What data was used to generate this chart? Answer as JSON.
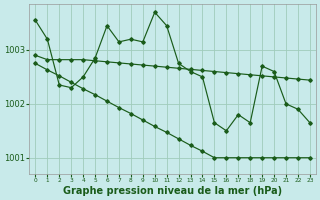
{
  "background_color": "#c8eaea",
  "grid_color": "#a0ccbb",
  "line_color": "#1a5c1a",
  "xlabel": "Graphe pression niveau de la mer (hPa)",
  "xlabel_fontsize": 7,
  "ylabel_ticks": [
    1001,
    1002,
    1003
  ],
  "xlim": [
    -0.5,
    23.5
  ],
  "ylim": [
    1000.7,
    1003.85
  ],
  "xticks": [
    0,
    1,
    2,
    3,
    4,
    5,
    6,
    7,
    8,
    9,
    10,
    11,
    12,
    13,
    14,
    15,
    16,
    17,
    18,
    19,
    20,
    21,
    22,
    23
  ],
  "series": [
    {
      "x": [
        0,
        1,
        2,
        3,
        4,
        5,
        6,
        7,
        8,
        9,
        10,
        11,
        12,
        13,
        14,
        15,
        16,
        17,
        18,
        19,
        20,
        21,
        22,
        23
      ],
      "y": [
        1003.55,
        1003.2,
        1002.35,
        1002.3,
        1002.5,
        1002.85,
        1003.45,
        1003.15,
        1003.2,
        1003.15,
        1003.7,
        1003.45,
        1002.75,
        1002.6,
        1002.5,
        1001.65,
        1001.5,
        1001.8,
        1001.65,
        1002.7,
        1002.6,
        1002.0,
        1001.9,
        1001.65
      ]
    },
    {
      "x": [
        0,
        1,
        2,
        3,
        4,
        5,
        6,
        7,
        8,
        9,
        10,
        11,
        12,
        13,
        14,
        15,
        16,
        17,
        18,
        19,
        20,
        21,
        22,
        23
      ],
      "y": [
        1002.9,
        1002.82,
        1002.82,
        1002.82,
        1002.82,
        1002.8,
        1002.78,
        1002.76,
        1002.74,
        1002.72,
        1002.7,
        1002.68,
        1002.66,
        1002.64,
        1002.62,
        1002.6,
        1002.58,
        1002.56,
        1002.54,
        1002.52,
        1002.5,
        1002.48,
        1002.46,
        1002.44
      ]
    },
    {
      "x": [
        0,
        1,
        2,
        3,
        4,
        5,
        6,
        7,
        8,
        9,
        10,
        11,
        12,
        13,
        14,
        15,
        16,
        17,
        18,
        19,
        20,
        21,
        22,
        23
      ],
      "y": [
        1002.75,
        1002.63,
        1002.52,
        1002.4,
        1002.28,
        1002.17,
        1002.05,
        1001.93,
        1001.82,
        1001.7,
        1001.58,
        1001.47,
        1001.35,
        1001.23,
        1001.12,
        1001.0,
        1001.0,
        1001.0,
        1001.0,
        1001.0,
        1001.0,
        1001.0,
        1001.0,
        1001.0
      ]
    }
  ]
}
